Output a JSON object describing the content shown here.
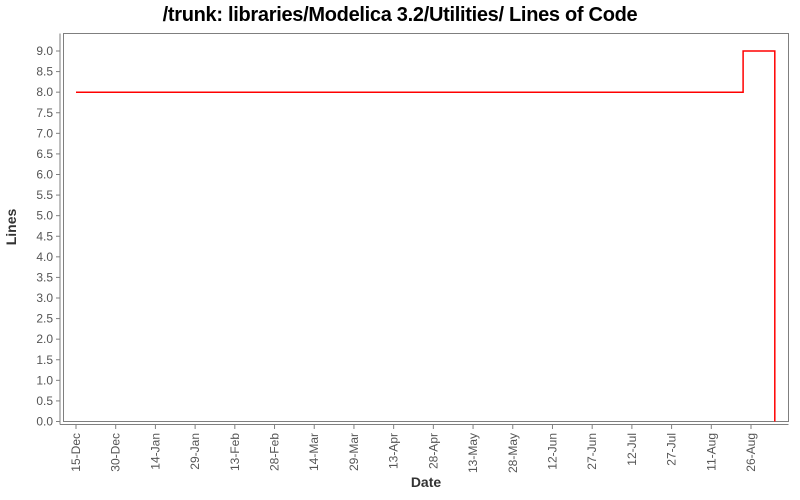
{
  "chart_data": {
    "type": "line",
    "title": "/trunk: libraries/Modelica 3.2/Utilities/ Lines of Code",
    "xlabel": "Date",
    "ylabel": "Lines",
    "legend": "none",
    "grid": false,
    "x_tick_labels": [
      "15-Dec",
      "30-Dec",
      "14-Jan",
      "29-Jan",
      "13-Feb",
      "28-Feb",
      "14-Mar",
      "29-Mar",
      "13-Apr",
      "28-Apr",
      "13-May",
      "28-May",
      "12-Jun",
      "27-Jun",
      "12-Jul",
      "27-Jul",
      "11-Aug",
      "26-Aug"
    ],
    "x_tick_days": [
      0,
      15,
      30,
      45,
      60,
      75,
      90,
      105,
      120,
      135,
      150,
      165,
      180,
      195,
      210,
      225,
      240,
      255
    ],
    "x_domain_days": [
      -5,
      269
    ],
    "y_tick_labels": [
      "0.0",
      "0.5",
      "1.0",
      "1.5",
      "2.0",
      "2.5",
      "3.0",
      "3.5",
      "4.0",
      "4.5",
      "5.0",
      "5.5",
      "6.0",
      "6.5",
      "7.0",
      "7.5",
      "8.0",
      "8.5",
      "9.0"
    ],
    "ylim": [
      0,
      9.45
    ],
    "series": [
      {
        "name": "lines-of-code",
        "color": "#ff0000",
        "points": [
          {
            "day": 0,
            "value": 8
          },
          {
            "day": 252,
            "value": 8
          },
          {
            "day": 252,
            "value": 9
          },
          {
            "day": 264,
            "value": 9
          },
          {
            "day": 264,
            "value": 0
          }
        ],
        "description": "Constant at 8 lines from 15-Dec; steps up to 9 lines around 23-Aug; drops to 0 (series end) around 4-Sep."
      }
    ],
    "colors": {
      "plot_border": "#7f7f7f",
      "axis_line": "#7f7f7f",
      "tick_labels": "#555555",
      "axis_titles": "#333333",
      "title": "#000000",
      "background": "#ffffff"
    }
  }
}
